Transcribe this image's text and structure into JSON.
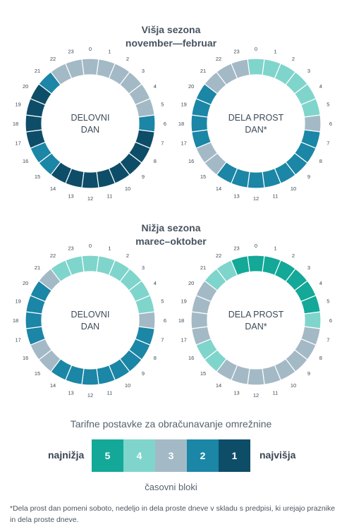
{
  "colors": {
    "block_1": "#0e4d68",
    "block_2": "#1b86a6",
    "block_3": "#a4b9c6",
    "block_4": "#7fd5cb",
    "block_5": "#13a898"
  },
  "seasons": [
    {
      "title": "Višja sezona",
      "period": "november—februar",
      "dials": [
        {
          "label_line1": "DELOVNI",
          "label_line2": "DAN",
          "blocks": [
            3,
            3,
            3,
            3,
            3,
            3,
            2,
            1,
            1,
            1,
            1,
            1,
            1,
            1,
            1,
            2,
            2,
            1,
            1,
            1,
            1,
            2,
            3,
            3
          ]
        },
        {
          "label_line1": "DELA PROST",
          "label_line2": "DAN*",
          "blocks": [
            4,
            4,
            4,
            4,
            4,
            4,
            3,
            2,
            2,
            2,
            2,
            2,
            2,
            2,
            2,
            3,
            3,
            2,
            2,
            2,
            2,
            3,
            3,
            3
          ]
        }
      ]
    },
    {
      "title": "Nižja sezona",
      "period": "marec–oktober",
      "dials": [
        {
          "label_line1": "DELOVNI",
          "label_line2": "DAN",
          "blocks": [
            4,
            4,
            4,
            4,
            4,
            4,
            3,
            2,
            2,
            2,
            2,
            2,
            2,
            2,
            2,
            3,
            3,
            2,
            2,
            2,
            2,
            3,
            4,
            4
          ]
        },
        {
          "label_line1": "DELA PROST",
          "label_line2": "DAN*",
          "blocks": [
            5,
            5,
            5,
            5,
            5,
            5,
            4,
            3,
            3,
            3,
            3,
            3,
            3,
            3,
            3,
            4,
            4,
            3,
            3,
            3,
            3,
            4,
            4,
            5
          ]
        }
      ]
    }
  ],
  "legend": {
    "title": "Tarifne postavke za obračunavanje omrežnine",
    "low_label": "najnižja",
    "high_label": "najvišja",
    "blocks": [
      "5",
      "4",
      "3",
      "2",
      "1"
    ],
    "caption": "časovni bloki"
  },
  "footnote": "*Dela prost dan pomeni soboto, nedeljo in dela proste dneve v skladu s predpisi, ki urejajo praznike in dela proste dneve."
}
